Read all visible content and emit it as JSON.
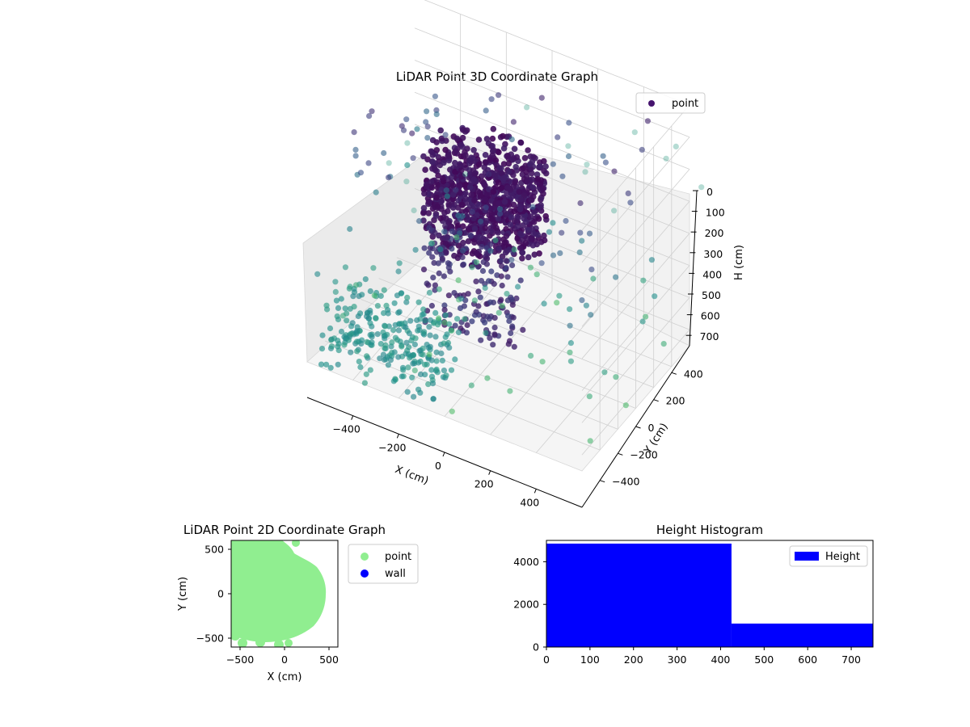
{
  "figure": {
    "background": "#ffffff"
  },
  "chart_data": [
    {
      "id": "3d",
      "type": "scatter",
      "title": "LiDAR Point 3D Coordinate Graph",
      "xlabel": "X (cm)",
      "ylabel": "Y (cm)",
      "zlabel": "H (cm)",
      "x_ticks": [
        "−400",
        "−200",
        "0",
        "200",
        "400"
      ],
      "y_ticks": [
        "−400",
        "−200",
        "0",
        "200",
        "400"
      ],
      "z_ticks": [
        "0",
        "100",
        "200",
        "300",
        "400",
        "500",
        "600",
        "700"
      ],
      "xlim": [
        -600,
        600
      ],
      "ylim": [
        -600,
        600
      ],
      "zlim": [
        0,
        750
      ],
      "z_inverted": true,
      "grid": true,
      "legend": {
        "placement": "top-right",
        "entries": [
          {
            "label": "point",
            "color": "#46146e"
          }
        ]
      },
      "colormap": "viridis",
      "series": [
        {
          "name": "point",
          "description_of_points": "dense blob near center with scattered points"
        }
      ]
    },
    {
      "id": "2d",
      "type": "scatter",
      "title": "LiDAR Point 2D Coordinate Graph",
      "xlabel": "X (cm)",
      "ylabel": "Y (cm)",
      "x_ticks": [
        "−500",
        "0",
        "500"
      ],
      "y_ticks": [
        "500",
        "0",
        "−500"
      ],
      "xlim": [
        -600,
        600
      ],
      "ylim": [
        -600,
        600
      ],
      "legend": {
        "placement": "outside-right",
        "entries": [
          {
            "label": "point",
            "color": "#90ee90"
          },
          {
            "label": "wall",
            "color": "#0000ff"
          }
        ]
      }
    },
    {
      "id": "hist",
      "type": "bar",
      "title": "Height Histogram",
      "xlabel": "",
      "ylabel": "",
      "x_ticks": [
        "0",
        "100",
        "200",
        "300",
        "400",
        "500",
        "600",
        "700"
      ],
      "y_ticks": [
        "0",
        "2000",
        "4000"
      ],
      "xlim": [
        0,
        750
      ],
      "ylim": [
        0,
        5000
      ],
      "bin_edges": [
        0,
        425,
        750
      ],
      "values": [
        4850,
        1100
      ],
      "color": "#0000ff",
      "legend": {
        "placement": "top-right",
        "entries": [
          {
            "label": "Height",
            "color": "#0000ff"
          }
        ]
      }
    }
  ]
}
